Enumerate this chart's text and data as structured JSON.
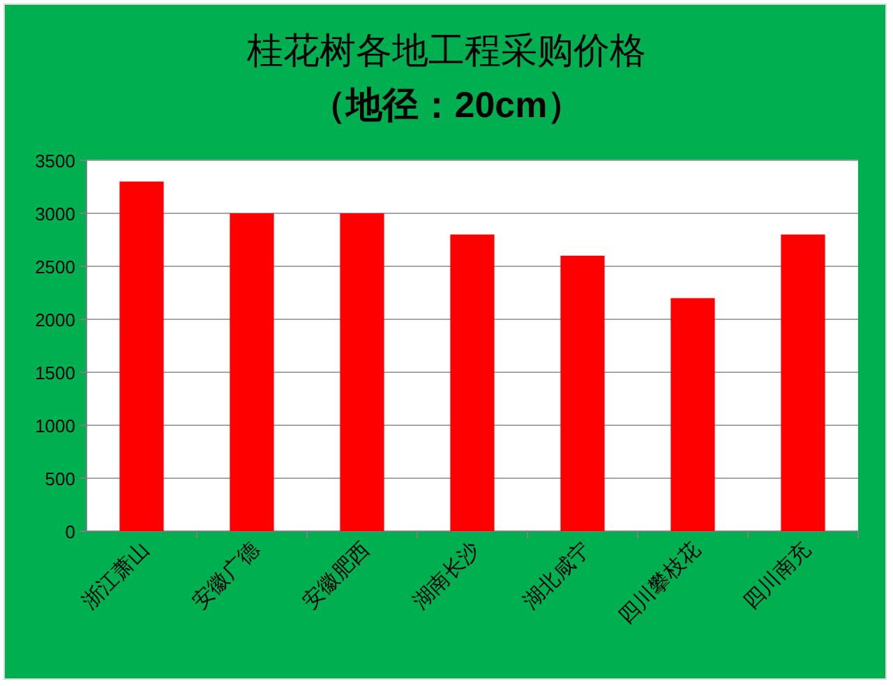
{
  "chart_data": {
    "type": "bar",
    "title": "桂花树各地工程采购价格",
    "subtitle": "（地径：20cm）",
    "categories": [
      "浙江萧山",
      "安徽广德",
      "安徽肥西",
      "湖南长沙",
      "湖北咸宁",
      "四川攀枝花",
      "四川南充"
    ],
    "values": [
      3300,
      3000,
      3000,
      2800,
      2600,
      2200,
      2800
    ],
    "color": "#ff0000",
    "ylim": [
      0,
      3500
    ],
    "yticks": [
      0,
      500,
      1000,
      1500,
      2000,
      2500,
      3000,
      3500
    ],
    "grid": "y"
  }
}
